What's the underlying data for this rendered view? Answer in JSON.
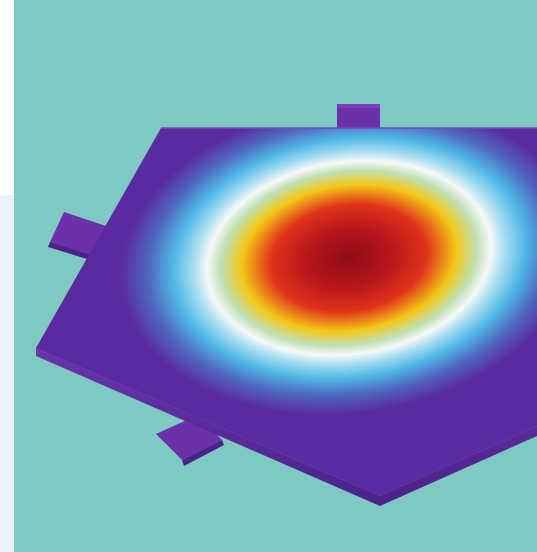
{
  "scene": {
    "subject": "heat-map-plate-render",
    "colors": {
      "background": "#7ec9c1",
      "left_strip": "#ecf1f7",
      "plate": "#5a2aa0",
      "plate_edge": "#5a2e9b",
      "tab": "#6a31a8",
      "hot": "#a0101a",
      "warm": "#e23217",
      "mid": "#f3c817",
      "ring": "#f4f6f5",
      "cool": "#4fb7e5"
    }
  }
}
